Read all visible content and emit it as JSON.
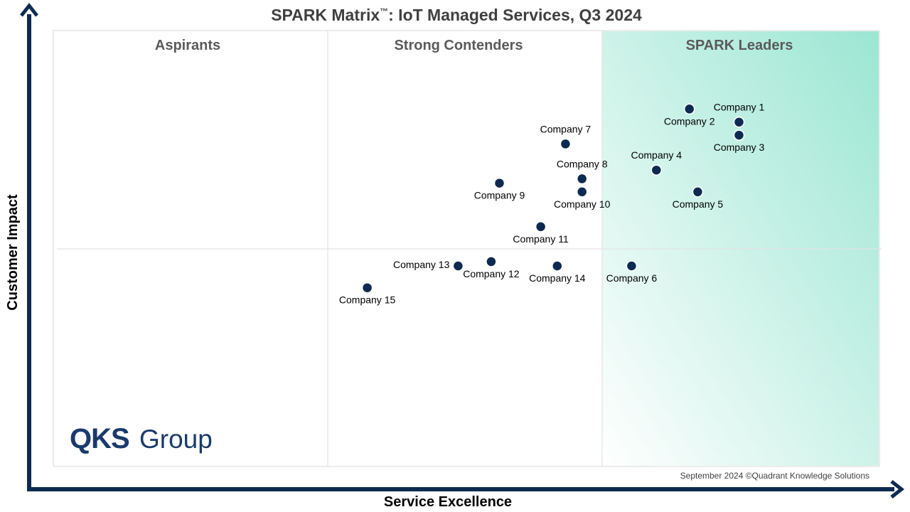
{
  "chart_data": {
    "type": "scatter",
    "title": "SPARK Matrix",
    "title_tm": "™",
    "title_rest": ": IoT Managed Services, Q3 2024",
    "xlabel": "Service Excellence",
    "ylabel": "Customer Impact",
    "zones": [
      "Aspirants",
      "Strong Contenders",
      "SPARK Leaders"
    ],
    "footer": "September 2024 ©Quadrant Knowledge Solutions",
    "logo": {
      "primary": "QKS",
      "secondary": "Group"
    },
    "grid": true,
    "colors": {
      "point": "#0d2a50",
      "axis": "#0d2a50",
      "leader_gradient": "#9be6d2"
    },
    "points": [
      {
        "name": "Company 1",
        "x": 0.83,
        "y": 0.79,
        "label_pos": "above"
      },
      {
        "name": "Company 2",
        "x": 0.77,
        "y": 0.82,
        "label_pos": "below"
      },
      {
        "name": "Company 3",
        "x": 0.83,
        "y": 0.76,
        "label_pos": "below"
      },
      {
        "name": "Company 4",
        "x": 0.73,
        "y": 0.68,
        "label_pos": "above"
      },
      {
        "name": "Company 5",
        "x": 0.78,
        "y": 0.63,
        "label_pos": "below"
      },
      {
        "name": "Company 6",
        "x": 0.7,
        "y": 0.46,
        "label_pos": "below"
      },
      {
        "name": "Company 7",
        "x": 0.62,
        "y": 0.74,
        "label_pos": "above"
      },
      {
        "name": "Company 8",
        "x": 0.64,
        "y": 0.66,
        "label_pos": "above"
      },
      {
        "name": "Company 9",
        "x": 0.54,
        "y": 0.65,
        "label_pos": "below"
      },
      {
        "name": "Company 10",
        "x": 0.64,
        "y": 0.63,
        "label_pos": "below"
      },
      {
        "name": "Company 11",
        "x": 0.59,
        "y": 0.55,
        "label_pos": "below"
      },
      {
        "name": "Company 12",
        "x": 0.53,
        "y": 0.47,
        "label_pos": "below"
      },
      {
        "name": "Company 13",
        "x": 0.49,
        "y": 0.46,
        "label_pos": "left"
      },
      {
        "name": "Company 14",
        "x": 0.61,
        "y": 0.46,
        "label_pos": "below"
      },
      {
        "name": "Company 15",
        "x": 0.38,
        "y": 0.41,
        "label_pos": "below"
      }
    ]
  }
}
